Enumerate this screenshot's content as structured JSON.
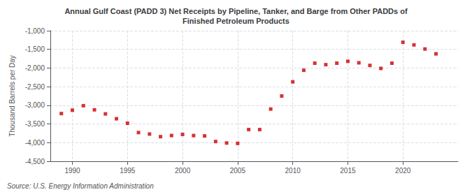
{
  "chart_data": {
    "type": "scatter",
    "title": "Annual Gulf Coast (PADD 3) Net Receipts by Pipeline, Tanker, and Barge from Other PADDs of\nFinished Petroleum Products",
    "ylabel": "Thousand Barrels per Day",
    "annotations": [
      "Source: U.S. Energy Information Administration"
    ],
    "x": [
      1989,
      1990,
      1991,
      1992,
      1993,
      1994,
      1995,
      1996,
      1997,
      1998,
      1999,
      2000,
      2001,
      2002,
      2003,
      2004,
      2005,
      2006,
      2007,
      2008,
      2009,
      2010,
      2011,
      2012,
      2013,
      2014,
      2015,
      2016,
      2017,
      2018,
      2019,
      2020,
      2021,
      2022,
      2023
    ],
    "values": [
      -3220,
      -3130,
      -3010,
      -3120,
      -3230,
      -3360,
      -3480,
      -3730,
      -3770,
      -3840,
      -3810,
      -3780,
      -3810,
      -3820,
      -3970,
      -4010,
      -4020,
      -3650,
      -3650,
      -3100,
      -2750,
      -2370,
      -2060,
      -1870,
      -1910,
      -1870,
      -1820,
      -1860,
      -1930,
      -2010,
      -1870,
      -1310,
      -1380,
      -1490,
      -1620
    ],
    "color": "#cc0000",
    "marker": "square",
    "xlim": [
      1988.0,
      2025.0
    ],
    "xticks": [
      1990,
      1995,
      2000,
      2005,
      2010,
      2015,
      2020
    ],
    "ylim": [
      -4500,
      -1000
    ],
    "yticks": [
      {
        "value": -1000,
        "label": "-1,000"
      },
      {
        "value": -1500,
        "label": "-1,500"
      },
      {
        "value": -2000,
        "label": "-2,000"
      },
      {
        "value": -2500,
        "label": "-2,500"
      },
      {
        "value": -3000,
        "label": "-3,000"
      },
      {
        "value": -3500,
        "label": "-3,500"
      },
      {
        "value": -4000,
        "label": "-4,000"
      },
      {
        "value": -4500,
        "label": "-4,500"
      }
    ],
    "grid": true
  }
}
